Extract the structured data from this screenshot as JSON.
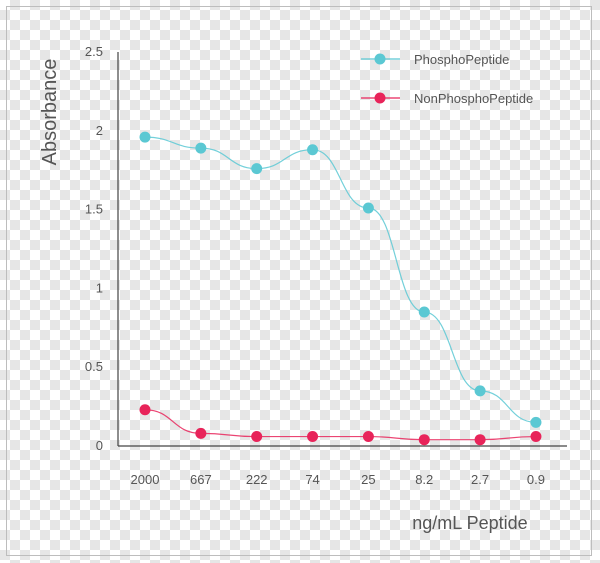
{
  "chart_data": {
    "type": "line",
    "title": "",
    "xlabel": "ng/mL Peptide",
    "ylabel": "Absorbance",
    "categories": [
      "2000",
      "667",
      "222",
      "74",
      "25",
      "8.2",
      "2.7",
      "0.9"
    ],
    "yticks": [
      "0",
      "0.5",
      "1",
      "1.5",
      "2",
      "2.5"
    ],
    "ylim": [
      0,
      2.5
    ],
    "grid": false,
    "legend_position": "top-right",
    "series": [
      {
        "name": "PhosphoPeptide",
        "color": "#5bc8d3",
        "values": [
          1.96,
          1.89,
          1.76,
          1.88,
          1.51,
          0.85,
          0.35,
          0.15
        ]
      },
      {
        "name": "NonPhosphoPeptide",
        "color": "#e8245a",
        "values": [
          0.23,
          0.08,
          0.06,
          0.06,
          0.06,
          0.04,
          0.04,
          0.06
        ]
      }
    ]
  }
}
